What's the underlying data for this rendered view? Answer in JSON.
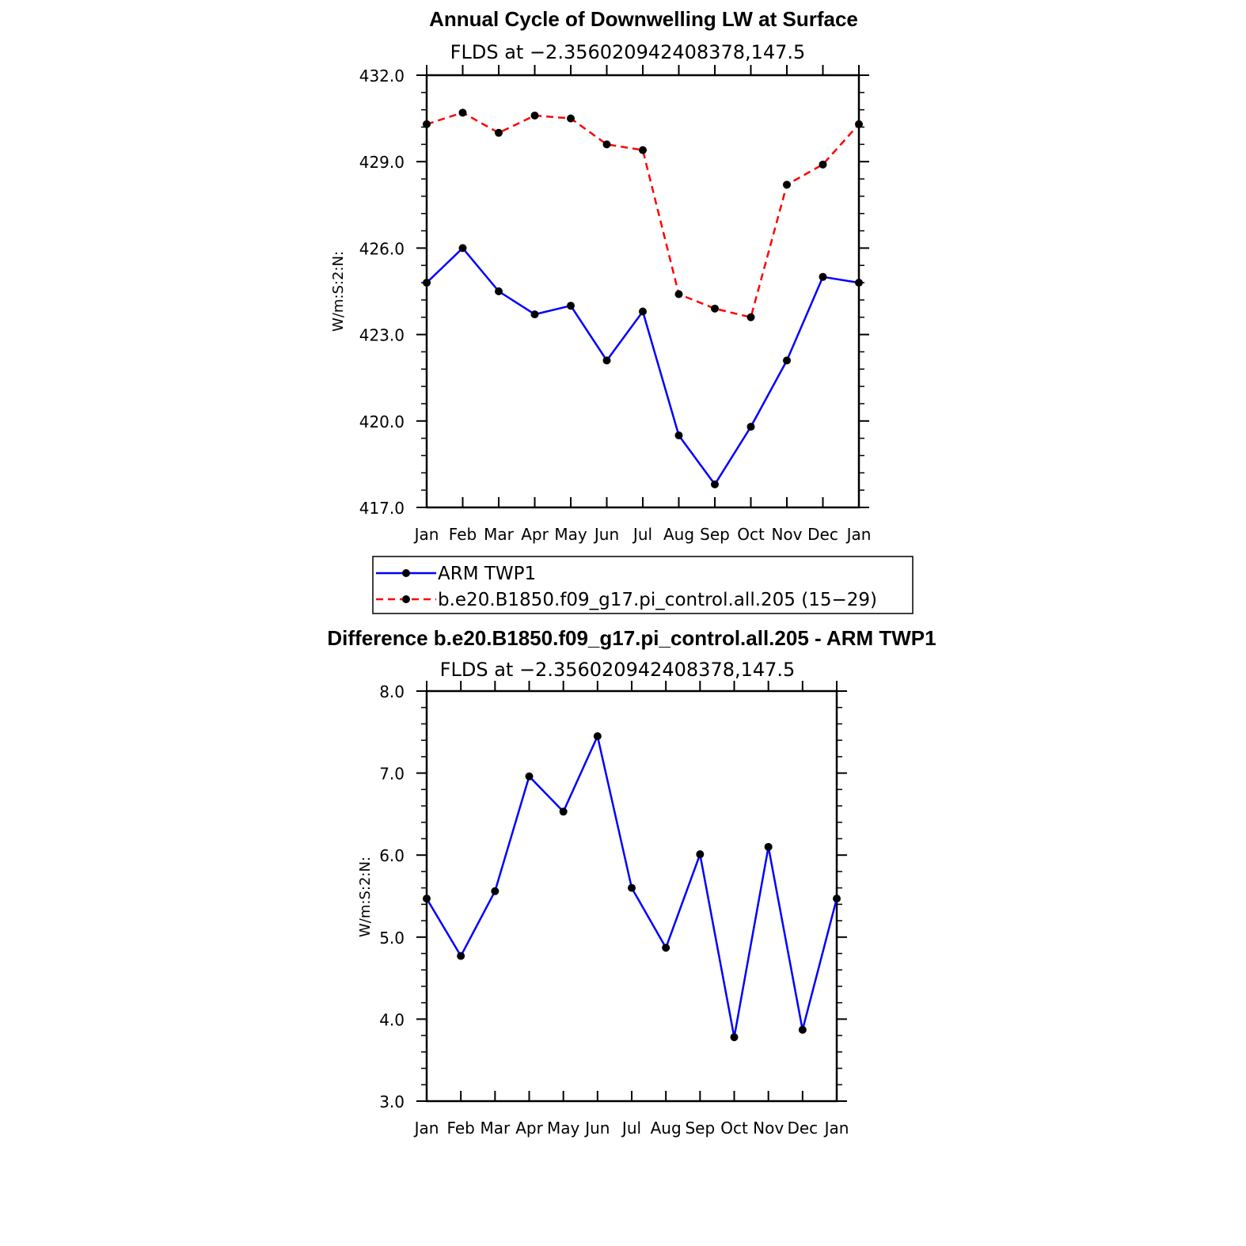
{
  "chart_data": [
    {
      "type": "line",
      "title": "Annual Cycle of Downwelling LW at Surface",
      "subtitle": "FLDS at −2.356020942408378,147.5",
      "ylabel": "W/m:S:2:N:",
      "categories": [
        "Jan",
        "Feb",
        "Mar",
        "Apr",
        "May",
        "Jun",
        "Jul",
        "Aug",
        "Sep",
        "Oct",
        "Nov",
        "Dec",
        "Jan"
      ],
      "ylim": [
        417.0,
        432.0
      ],
      "yticks": [
        "417.0",
        "420.0",
        "423.0",
        "426.0",
        "429.0",
        "432.0"
      ],
      "series": [
        {
          "name": "ARM  TWP1",
          "color": "#0000ff",
          "dash": "solid",
          "values": [
            424.8,
            426.0,
            424.5,
            423.7,
            424.0,
            422.1,
            423.8,
            419.5,
            417.8,
            419.8,
            422.1,
            425.0,
            424.8
          ]
        },
        {
          "name": "b.e20.B1850.f09_g17.pi_control.all.205 (15−29)",
          "color": "#ff0000",
          "dash": "dashed",
          "values": [
            430.3,
            430.7,
            430.0,
            430.6,
            430.5,
            429.6,
            429.4,
            424.4,
            423.9,
            423.6,
            428.2,
            428.9,
            430.3
          ]
        }
      ],
      "legend": "below"
    },
    {
      "type": "line",
      "title": "Difference b.e20.B1850.f09_g17.pi_control.all.205 - ARM TWP1",
      "subtitle": "FLDS at −2.356020942408378,147.5",
      "ylabel": "W/m:S:2:N:",
      "categories": [
        "Jan",
        "Feb",
        "Mar",
        "Apr",
        "May",
        "Jun",
        "Jul",
        "Aug",
        "Sep",
        "Oct",
        "Nov",
        "Dec",
        "Jan"
      ],
      "ylim": [
        3.0,
        8.0
      ],
      "yticks": [
        "3.0",
        "4.0",
        "5.0",
        "6.0",
        "7.0",
        "8.0"
      ],
      "series": [
        {
          "color": "#0000ff",
          "dash": "solid",
          "values": [
            5.47,
            4.77,
            5.56,
            6.96,
            6.53,
            7.45,
            5.6,
            4.87,
            6.01,
            3.78,
            6.1,
            3.87,
            5.47
          ]
        }
      ]
    }
  ]
}
